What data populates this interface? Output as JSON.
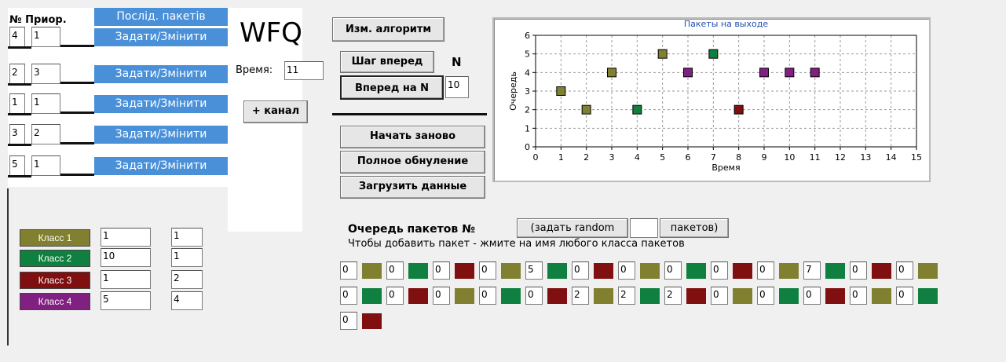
{
  "header": {
    "prior_label": "№ Приор.",
    "sequence_button": "Послід. пакетів"
  },
  "channels": [
    {
      "number": "4",
      "priority": "1",
      "button": "Задати/Змінити"
    },
    {
      "number": "2",
      "priority": "3",
      "button": "Задати/Змінити"
    },
    {
      "number": "1",
      "priority": "1",
      "button": "Задати/Змінити"
    },
    {
      "number": "3",
      "priority": "2",
      "button": "Задати/Змінити"
    },
    {
      "number": "5",
      "priority": "1",
      "button": "Задати/Змінити"
    }
  ],
  "wfq": {
    "title": "WFQ",
    "time_label": "Время:",
    "time": "11",
    "add_channel": "+ канал"
  },
  "controls": {
    "change_algorithm": "Изм. алгоритм",
    "step_forward": "Шаг вперед",
    "n_label": "N",
    "forward_n": "Вперед на N",
    "n_value": "10",
    "restart": "Начать заново",
    "full_reset": "Полное обнуление",
    "load_data": "Загрузить данные"
  },
  "chart_data": {
    "type": "scatter",
    "title": "Пакеты на выходе",
    "xlabel": "Время",
    "ylabel": "Очередь",
    "x": [
      1,
      2,
      3,
      4,
      5,
      6,
      7,
      8,
      9,
      10,
      11
    ],
    "values": [
      3,
      2,
      4,
      2,
      5,
      4,
      5,
      2,
      4,
      4,
      4
    ],
    "colors": [
      "#808030",
      "#808030",
      "#808030",
      "#108040",
      "#808030",
      "#802080",
      "#108040",
      "#801010",
      "#802080",
      "#802080",
      "#802080"
    ],
    "xlim": [
      0,
      15
    ],
    "xticks": [
      0,
      1,
      2,
      3,
      4,
      5,
      6,
      7,
      8,
      9,
      10,
      11,
      12,
      13,
      14,
      15
    ],
    "ylim": [
      0,
      6
    ],
    "yticks": [
      0,
      1,
      2,
      3,
      4,
      5,
      6
    ],
    "grid": true
  },
  "classes": [
    {
      "name": "Класс 1",
      "color": "#808030",
      "weight": "1",
      "queue": "1"
    },
    {
      "name": "Класс 2",
      "color": "#108040",
      "weight": "10",
      "queue": "1"
    },
    {
      "name": "Класс 3",
      "color": "#801010",
      "weight": "1",
      "queue": "2"
    },
    {
      "name": "Класс 4",
      "color": "#802080",
      "weight": "5",
      "queue": "4"
    }
  ],
  "queue": {
    "title": "Очередь пакетов №",
    "random_button": "(задать random",
    "random_count": "",
    "packets_button": "пакетов)",
    "hint": "Чтобы добавить пакет - жмите на имя любого класса пакетов",
    "packets": [
      {
        "value": "0",
        "color": "#808030"
      },
      {
        "value": "0",
        "color": "#108040"
      },
      {
        "value": "0",
        "color": "#801010"
      },
      {
        "value": "0",
        "color": "#808030"
      },
      {
        "value": "5",
        "color": "#108040"
      },
      {
        "value": "0",
        "color": "#801010"
      },
      {
        "value": "0",
        "color": "#808030"
      },
      {
        "value": "0",
        "color": "#108040"
      },
      {
        "value": "0",
        "color": "#801010"
      },
      {
        "value": "0",
        "color": "#808030"
      },
      {
        "value": "7",
        "color": "#108040"
      },
      {
        "value": "0",
        "color": "#801010"
      },
      {
        "value": "0",
        "color": "#808030"
      },
      {
        "value": "0",
        "color": "#108040"
      },
      {
        "value": "0",
        "color": "#801010"
      },
      {
        "value": "0",
        "color": "#808030"
      },
      {
        "value": "0",
        "color": "#108040"
      },
      {
        "value": "0",
        "color": "#801010"
      },
      {
        "value": "2",
        "color": "#808030"
      },
      {
        "value": "2",
        "color": "#108040"
      },
      {
        "value": "2",
        "color": "#801010"
      },
      {
        "value": "0",
        "color": "#808030"
      },
      {
        "value": "0",
        "color": "#108040"
      },
      {
        "value": "0",
        "color": "#801010"
      },
      {
        "value": "0",
        "color": "#808030"
      },
      {
        "value": "0",
        "color": "#108040"
      },
      {
        "value": "0",
        "color": "#801010"
      }
    ]
  }
}
